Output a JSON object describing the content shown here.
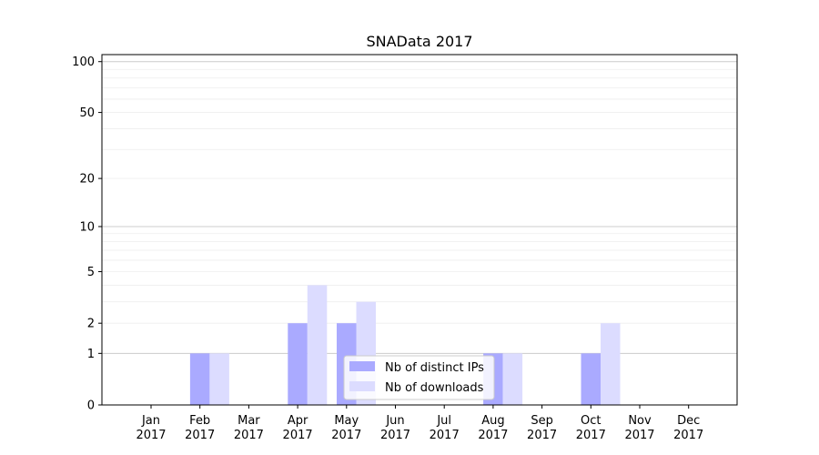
{
  "chart_data": {
    "type": "bar",
    "title": "SNAData 2017",
    "categories": [
      [
        "Jan",
        "2017"
      ],
      [
        "Feb",
        "2017"
      ],
      [
        "Mar",
        "2017"
      ],
      [
        "Apr",
        "2017"
      ],
      [
        "May",
        "2017"
      ],
      [
        "Jun",
        "2017"
      ],
      [
        "Jul",
        "2017"
      ],
      [
        "Aug",
        "2017"
      ],
      [
        "Sep",
        "2017"
      ],
      [
        "Oct",
        "2017"
      ],
      [
        "Nov",
        "2017"
      ],
      [
        "Dec",
        "2017"
      ]
    ],
    "series": [
      {
        "name": "Nb of distinct IPs",
        "color": "#aaaaff",
        "values": [
          0,
          1,
          0,
          2,
          2,
          0,
          0,
          1,
          0,
          1,
          0,
          0
        ]
      },
      {
        "name": "Nb of downloads",
        "color": "#dcdcff",
        "values": [
          0,
          1,
          0,
          4,
          3,
          0,
          0,
          1,
          0,
          2,
          0,
          0
        ]
      }
    ],
    "yscale": "log(1+y)",
    "yticks": [
      0,
      1,
      2,
      5,
      10,
      20,
      50,
      100
    ],
    "ytick_labels": [
      "0",
      "1",
      "2",
      "5",
      "10",
      "20",
      "50",
      "100"
    ],
    "ylim": [
      0,
      110
    ],
    "grid": true,
    "legend_position": "bottom-center"
  }
}
